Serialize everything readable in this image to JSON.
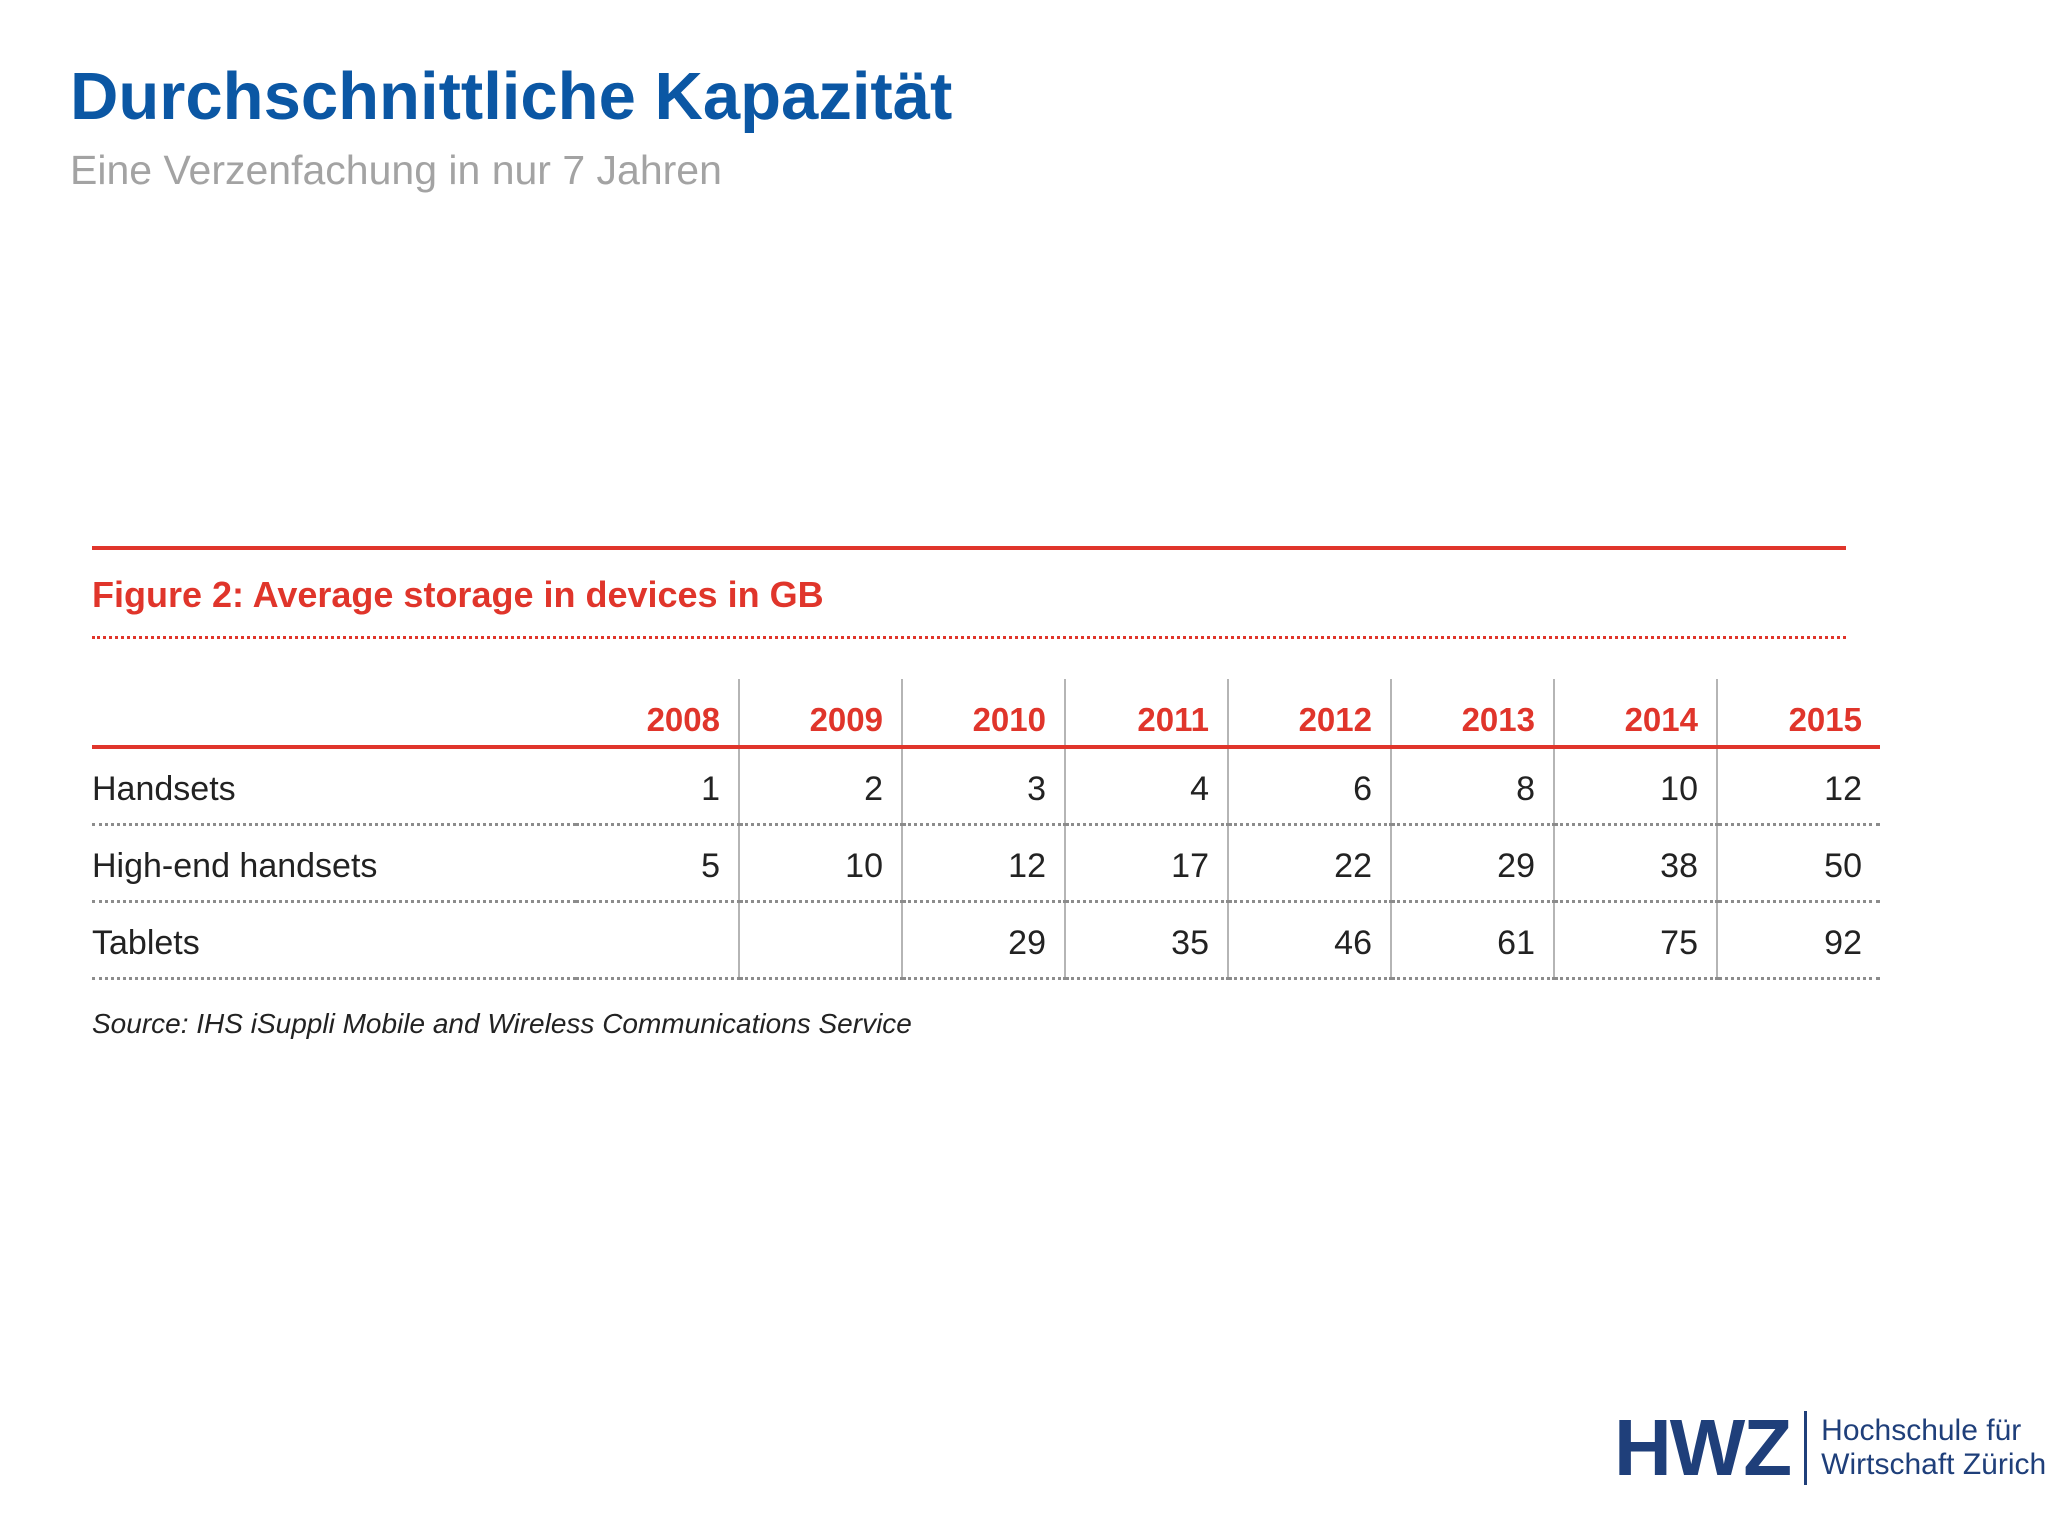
{
  "slide": {
    "title": "Durchschnittliche Kapazität",
    "subtitle": "Eine Verzenfachung in nur 7 Jahren"
  },
  "figure": {
    "title": "Figure 2: Average storage in devices in GB",
    "source": "Source: IHS iSuppli Mobile and Wireless Communications Service",
    "accent_color": "#e0352b"
  },
  "table": {
    "columns": [
      "2008",
      "2009",
      "2010",
      "2011",
      "2012",
      "2013",
      "2014",
      "2015"
    ],
    "rows": [
      {
        "label": "Handsets",
        "values": [
          "1",
          "2",
          "3",
          "4",
          "6",
          "8",
          "10",
          "12"
        ]
      },
      {
        "label": "High-end handsets",
        "values": [
          "5",
          "10",
          "12",
          "17",
          "22",
          "29",
          "38",
          "50"
        ]
      },
      {
        "label": "Tablets",
        "values": [
          "",
          "",
          "29",
          "35",
          "46",
          "61",
          "75",
          "92"
        ]
      }
    ]
  },
  "logo": {
    "mark": "HWZ",
    "line1": "Hochschule für",
    "line2": "Wirtschaft Zürich",
    "color": "#1f3f7a"
  }
}
